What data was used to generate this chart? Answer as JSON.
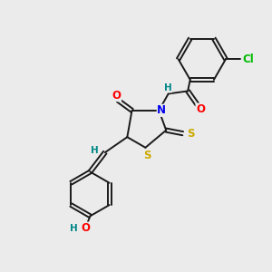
{
  "bg_color": "#ebebeb",
  "bond_color": "#1a1a1a",
  "atom_colors": {
    "N": "#0000ee",
    "O": "#ff0000",
    "S": "#ccaa00",
    "Cl": "#00bb00",
    "H": "#008888",
    "C": "#1a1a1a"
  },
  "font_size": 8.5,
  "line_width": 1.4
}
